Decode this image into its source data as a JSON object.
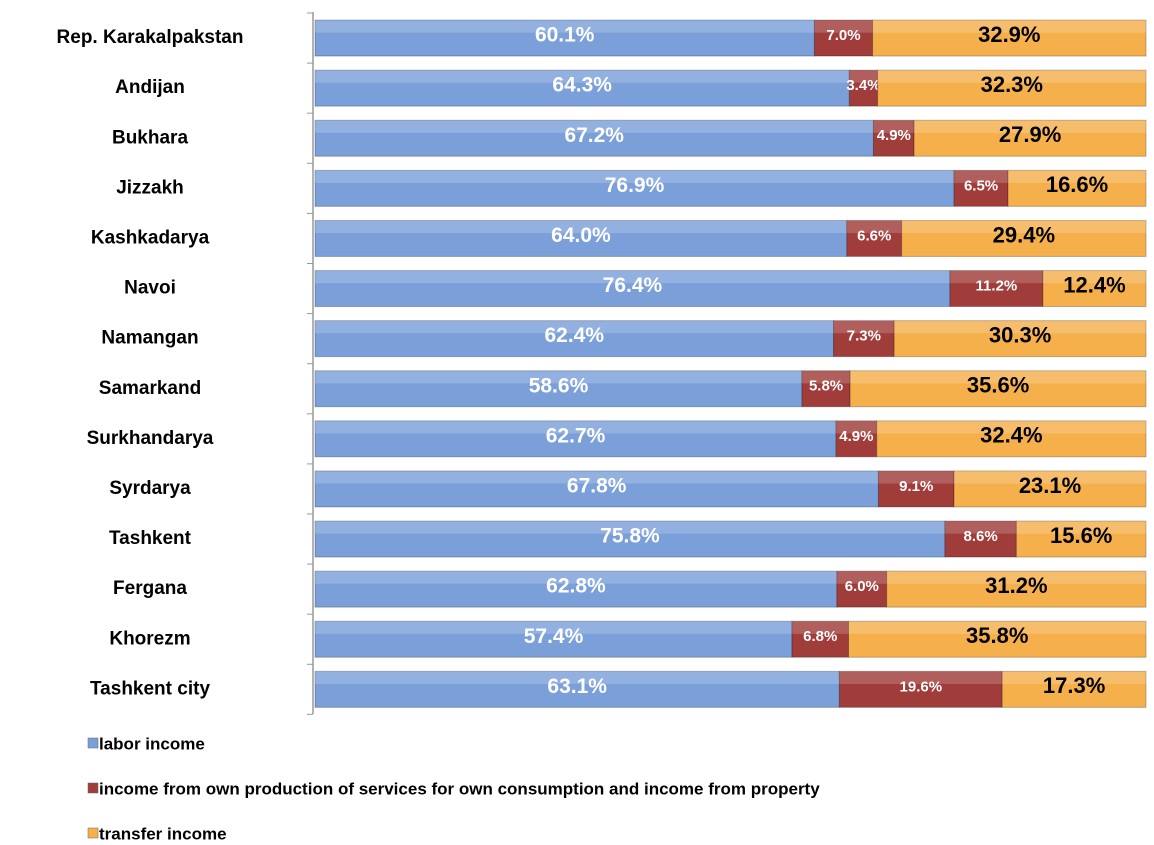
{
  "chart_data": {
    "type": "stacked-bar-horizontal",
    "categories": [
      "Rep. Karakalpakstan",
      "Andijan",
      "Bukhara",
      "Jizzakh",
      "Kashkadarya",
      "Navoi",
      "Namangan",
      "Samarkand",
      "Surkhandarya",
      "Syrdarya",
      "Tashkent",
      "Fergana",
      "Khorezm",
      "Tashkent city"
    ],
    "xlim": [
      0,
      100
    ],
    "series": [
      {
        "name": "labor income",
        "color": "#7b9fd9",
        "values": [
          60.1,
          64.3,
          67.2,
          76.9,
          64.0,
          76.4,
          62.4,
          58.6,
          62.7,
          67.8,
          75.8,
          62.8,
          57.4,
          63.1
        ],
        "value_labels": [
          "60.1%",
          "64.3%",
          "67.2%",
          "76.9%",
          "64.0%",
          "76.4%",
          "62.4%",
          "58.6%",
          "62.7%",
          "67.8%",
          "75.8%",
          "62.8%",
          "57.4%",
          "63.1%"
        ]
      },
      {
        "name": "income from own production of services for own consumption and income from property",
        "color": "#a03c3a",
        "values": [
          7.0,
          3.4,
          4.9,
          6.5,
          6.6,
          11.2,
          7.3,
          5.8,
          4.9,
          9.1,
          8.6,
          6.0,
          6.8,
          19.6
        ],
        "value_labels": [
          "7.0%",
          "3.4%",
          "4.9%",
          "6.5%",
          "6.6%",
          "11.2%",
          "7.3%",
          "5.8%",
          "4.9%",
          "9.1%",
          "8.6%",
          "6.0%",
          "6.8%",
          "19.6%"
        ]
      },
      {
        "name": "transfer income",
        "color": "#f5b04c",
        "values": [
          32.9,
          32.3,
          27.9,
          16.6,
          29.4,
          12.4,
          30.3,
          35.6,
          32.4,
          23.1,
          15.6,
          31.2,
          35.8,
          17.3
        ],
        "value_labels": [
          "32.9%",
          "32.3%",
          "27.9%",
          "16.6%",
          "29.4%",
          "12.4%",
          "30.3%",
          "35.6%",
          "32.4%",
          "23.1%",
          "15.6%",
          "31.2%",
          "35.8%",
          "17.3%"
        ]
      }
    ]
  }
}
